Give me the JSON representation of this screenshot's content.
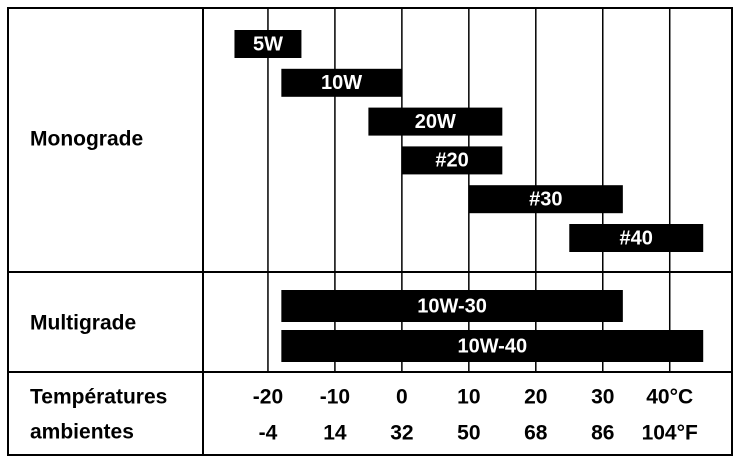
{
  "chart_data": {
    "type": "range-bar",
    "xlabel": [
      "Températures",
      "ambientes"
    ],
    "xlim": [
      -29.7,
      49.3
    ],
    "xticks": [
      -20,
      -10,
      0,
      10,
      20,
      30,
      {
        "value": 40,
        "label": "40°C"
      }
    ],
    "x2ticks": [
      -4,
      14,
      32,
      50,
      68,
      86,
      {
        "value": 104,
        "label": "104°F"
      }
    ],
    "color": "#000000",
    "groups": [
      {
        "name": "Monograde",
        "series": [
          {
            "name": "5W",
            "values": [
              -25,
              -15
            ]
          },
          {
            "name": "10W",
            "values": [
              -18,
              0
            ]
          },
          {
            "name": "20W",
            "values": [
              -5,
              15
            ]
          },
          {
            "name": "#20",
            "values": [
              0,
              15
            ]
          },
          {
            "name": "#30",
            "values": [
              10,
              33
            ]
          },
          {
            "name": "#40",
            "values": [
              25,
              45
            ]
          }
        ]
      },
      {
        "name": "Multigrade",
        "series": [
          {
            "name": "10W-30",
            "values": [
              -18,
              33
            ]
          },
          {
            "name": "10W-40",
            "values": [
              -18,
              45
            ]
          }
        ]
      }
    ]
  }
}
